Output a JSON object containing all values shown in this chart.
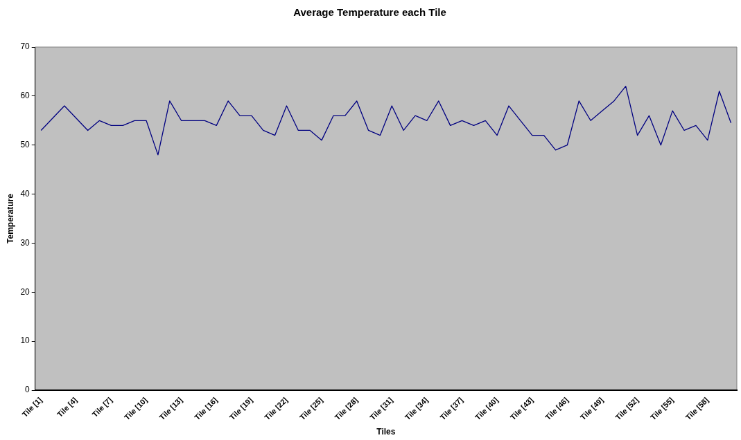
{
  "chart_data": {
    "type": "line",
    "title": "Average Temperature each Tile",
    "xlabel": "Tiles",
    "ylabel": "Temperature",
    "categories": [
      "Tile [1]",
      null,
      null,
      "Tile [4]",
      null,
      null,
      "Tile [7]",
      null,
      null,
      "Tile [10]",
      null,
      null,
      "Tile [13]",
      null,
      null,
      "Tile [16]",
      null,
      null,
      "Tile [19]",
      null,
      null,
      "Tile [22]",
      null,
      null,
      "Tile [25]",
      null,
      null,
      "Tile [28]",
      null,
      null,
      "Tile [31]",
      null,
      null,
      "Tile [34]",
      null,
      null,
      "Tile [37]",
      null,
      null,
      "Tile [40]",
      null,
      null,
      "Tile [43]",
      null,
      null,
      "Tile [46]",
      null,
      null,
      "Tile [49]",
      null,
      null,
      "Tile [52]",
      null,
      null,
      "Tile [55]",
      null,
      null,
      "Tile [58]",
      null,
      null
    ],
    "series": [
      {
        "color": "#000080",
        "values": [
          53,
          55.5,
          58,
          55.5,
          53,
          55,
          54,
          54,
          55,
          55,
          48,
          59,
          55,
          55,
          55,
          54,
          59,
          56,
          56,
          53,
          52,
          58,
          53,
          53,
          51,
          56,
          56,
          59,
          53,
          52,
          58,
          53,
          56,
          55,
          59,
          54,
          55,
          54,
          55,
          52,
          58,
          55,
          52,
          52,
          49,
          50,
          59,
          55,
          57,
          59,
          62,
          52,
          56,
          50,
          57,
          53,
          54,
          51,
          61,
          54.5
        ]
      }
    ],
    "ylim": [
      0,
      70
    ],
    "yticks": [
      0,
      10,
      20,
      30,
      40,
      50,
      60,
      70
    ],
    "grid": false,
    "legend": false,
    "marker": "none",
    "line_style": "solid"
  }
}
